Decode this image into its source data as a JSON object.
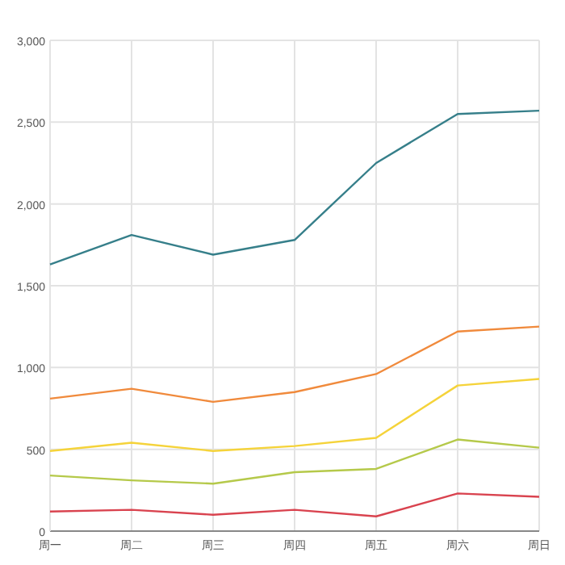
{
  "chart_data": {
    "type": "line",
    "categories": [
      "周一",
      "周二",
      "周三",
      "周四",
      "周五",
      "周六",
      "周日"
    ],
    "series": [
      {
        "color": "#367f8a",
        "values": [
          1630,
          1810,
          1690,
          1780,
          2250,
          2550,
          2570
        ]
      },
      {
        "color": "#f08a3c",
        "values": [
          810,
          870,
          790,
          850,
          960,
          1220,
          1250
        ]
      },
      {
        "color": "#f5d33a",
        "values": [
          490,
          540,
          490,
          520,
          570,
          890,
          930
        ]
      },
      {
        "color": "#b5c94a",
        "values": [
          340,
          310,
          290,
          360,
          380,
          560,
          510
        ]
      },
      {
        "color": "#d9434f",
        "values": [
          120,
          130,
          100,
          130,
          90,
          230,
          210
        ]
      }
    ],
    "ylim": [
      0,
      3000
    ],
    "yticks": [
      {
        "value": 0,
        "label": "0"
      },
      {
        "value": 500,
        "label": "500"
      },
      {
        "value": 1000,
        "label": "1,000"
      },
      {
        "value": 1500,
        "label": "1,500"
      },
      {
        "value": 2000,
        "label": "2,000"
      },
      {
        "value": 2500,
        "label": "2,500"
      },
      {
        "value": 3000,
        "label": "3,000"
      }
    ],
    "grid": true,
    "marker": "none",
    "line_style": "solid"
  }
}
